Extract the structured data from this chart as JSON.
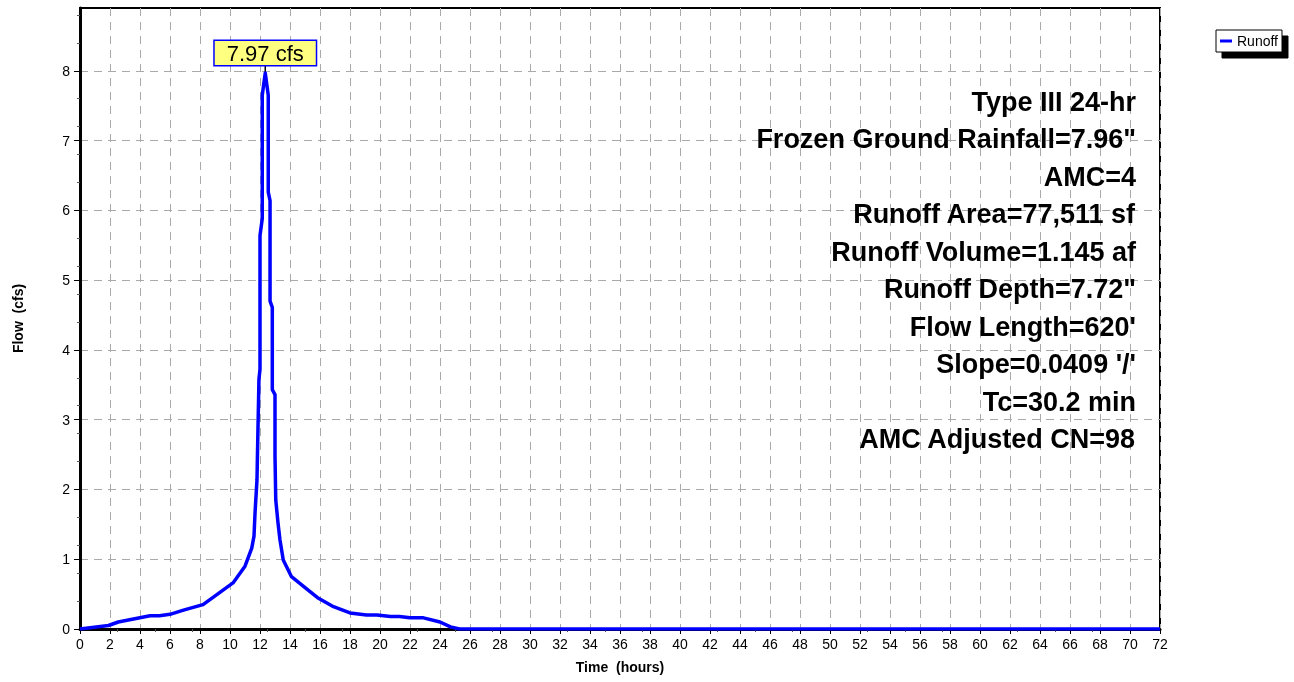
{
  "chart_data": {
    "type": "line",
    "xlabel": "Time  (hours)",
    "ylabel": "Flow  (cfs)",
    "x": [
      0,
      1.9,
      2.55,
      4.67,
      5.3,
      6.0,
      6.9,
      8.2,
      9.1,
      10.2,
      11.0,
      11.45,
      11.6,
      11.67,
      11.8,
      11.82,
      11.93,
      12.0,
      12.0,
      12.15,
      12.15,
      12.35,
      12.55,
      12.55,
      12.67,
      12.67,
      12.82,
      12.82,
      13.0,
      13.0,
      13.05,
      13.2,
      13.33,
      13.55,
      14.1,
      14.9,
      15.9,
      16.9,
      18.0,
      19.1,
      19.8,
      20.7,
      21.3,
      22.0,
      22.9,
      24.0,
      24.7,
      25.3,
      72
    ],
    "series": [
      {
        "name": "Runoff",
        "color": "#0000ff",
        "values": [
          0,
          0.05,
          0.1,
          0.19,
          0.19,
          0.21,
          0.27,
          0.35,
          0.49,
          0.66,
          0.9,
          1.16,
          1.33,
          1.67,
          2.14,
          2.38,
          3.58,
          3.72,
          5.64,
          5.88,
          7.65,
          7.97,
          7.65,
          6.26,
          6.14,
          4.7,
          4.61,
          3.43,
          3.36,
          2.48,
          1.85,
          1.52,
          1.28,
          0.99,
          0.75,
          0.61,
          0.44,
          0.32,
          0.23,
          0.2,
          0.2,
          0.18,
          0.18,
          0.16,
          0.16,
          0.1,
          0.03,
          0,
          0
        ]
      }
    ],
    "xlim": [
      0,
      72
    ],
    "xticks": [
      0,
      2,
      4,
      6,
      8,
      10,
      12,
      14,
      16,
      18,
      20,
      22,
      24,
      26,
      28,
      30,
      32,
      34,
      36,
      38,
      40,
      42,
      44,
      46,
      48,
      50,
      52,
      54,
      56,
      58,
      60,
      62,
      64,
      66,
      68,
      70,
      72
    ],
    "ylim": [
      0,
      8.9
    ],
    "yticks": [
      0,
      1,
      2,
      3,
      4,
      5,
      6,
      7,
      8
    ],
    "grid": true,
    "legend": "top right",
    "marker": "none",
    "line_style": "solid",
    "annotations": [
      {
        "text": "7.97 cfs",
        "x": 12.35,
        "y": 7.97
      },
      "Type III 24-hr",
      "Frozen Ground Rainfall=7.96\"",
      "AMC=4",
      "Runoff Area=77,511 sf",
      "Runoff Volume=1.145 af",
      "Runoff Depth=7.72\"",
      "Flow Length=620'",
      "Slope=0.0409 '/'",
      "Tc=30.2 min",
      "AMC Adjusted CN=98"
    ]
  }
}
